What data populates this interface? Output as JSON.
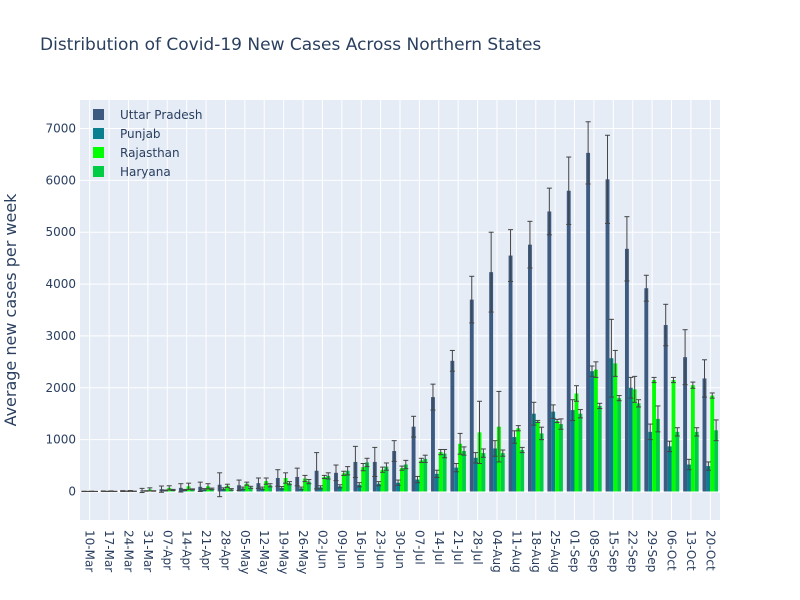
{
  "chart_data": {
    "type": "bar",
    "title": "Distribution of Covid-19 New Cases Across Northern States",
    "ylabel": "Average new cases per week",
    "xlabel": "",
    "ylim": [
      -550,
      7550
    ],
    "yticks": [
      0,
      1000,
      2000,
      3000,
      4000,
      5000,
      6000,
      7000
    ],
    "grid": true,
    "legend_position": "top-left",
    "categories": [
      "10-Mar",
      "17-Mar",
      "24-Mar",
      "31-Mar",
      "07-Apr",
      "14-Apr",
      "21-Apr",
      "28-Apr",
      "05-May",
      "12-May",
      "19-May",
      "26-May",
      "02-Jun",
      "09-Jun",
      "16-Jun",
      "23-Jun",
      "30-Jun",
      "07-Jul",
      "14-Jul",
      "21-Jul",
      "28-Jul",
      "04-Aug",
      "11-Aug",
      "18-Aug",
      "25-Aug",
      "01-Sep",
      "08-Sep",
      "15-Sep",
      "22-Sep",
      "29-Sep",
      "06-Oct",
      "13-Oct",
      "20-Oct"
    ],
    "series": [
      {
        "name": "Uttar Pradesh",
        "color": "#3d5a80",
        "values": [
          2,
          5,
          8,
          20,
          45,
          70,
          90,
          130,
          120,
          160,
          260,
          280,
          400,
          360,
          570,
          570,
          780,
          1250,
          1820,
          2520,
          3700,
          4230,
          4550,
          4760,
          5400,
          5800,
          6530,
          6020,
          4680,
          3920,
          3210,
          2590,
          2180
        ],
        "error": [
          3,
          5,
          8,
          40,
          60,
          80,
          90,
          230,
          100,
          100,
          160,
          170,
          350,
          150,
          300,
          280,
          200,
          200,
          250,
          200,
          450,
          770,
          500,
          450,
          450,
          650,
          600,
          850,
          620,
          250,
          400,
          530,
          360
        ]
      },
      {
        "name": "Punjab",
        "color": "#0a7f90",
        "values": [
          1,
          2,
          5,
          10,
          20,
          30,
          40,
          50,
          60,
          60,
          70,
          60,
          80,
          100,
          130,
          150,
          170,
          230,
          340,
          460,
          650,
          830,
          1050,
          1500,
          1540,
          1570,
          2320,
          2570,
          2000,
          1150,
          870,
          520,
          490
        ],
        "error": [
          1,
          2,
          3,
          5,
          8,
          10,
          15,
          20,
          25,
          25,
          25,
          25,
          30,
          30,
          40,
          40,
          50,
          60,
          70,
          80,
          100,
          150,
          120,
          220,
          130,
          200,
          100,
          750,
          200,
          150,
          100,
          100,
          80
        ]
      },
      {
        "name": "Rajasthan",
        "color": "#00ff00",
        "values": [
          3,
          6,
          10,
          40,
          70,
          100,
          100,
          110,
          150,
          200,
          260,
          250,
          280,
          350,
          470,
          420,
          450,
          600,
          760,
          920,
          1140,
          1250,
          1220,
          1350,
          1360,
          1890,
          2350,
          2470,
          1970,
          2150,
          2150,
          2050,
          1850
        ],
        "error": [
          3,
          5,
          8,
          30,
          40,
          60,
          50,
          30,
          30,
          60,
          100,
          60,
          30,
          40,
          70,
          50,
          40,
          40,
          50,
          200,
          600,
          680,
          50,
          20,
          30,
          150,
          150,
          250,
          250,
          50,
          50,
          60,
          50
        ]
      },
      {
        "name": "Haryana",
        "color": "#00cc44",
        "values": [
          1,
          2,
          4,
          10,
          30,
          40,
          50,
          40,
          80,
          120,
          160,
          190,
          300,
          400,
          560,
          480,
          520,
          630,
          730,
          780,
          740,
          740,
          800,
          1120,
          1300,
          1500,
          1650,
          1800,
          1700,
          1400,
          1150,
          1150,
          1180
        ],
        "error": [
          1,
          2,
          3,
          5,
          10,
          10,
          15,
          15,
          20,
          30,
          30,
          40,
          60,
          80,
          80,
          70,
          80,
          70,
          80,
          80,
          80,
          60,
          50,
          120,
          100,
          80,
          50,
          50,
          70,
          250,
          80,
          80,
          200
        ]
      }
    ]
  }
}
